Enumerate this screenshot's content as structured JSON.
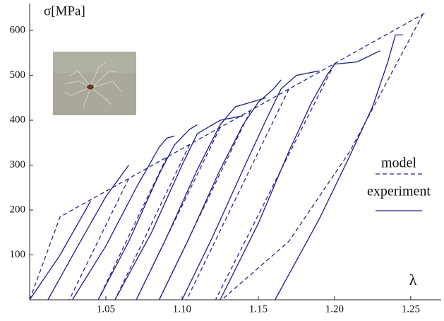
{
  "chart_data": {
    "type": "line",
    "y_label": "σ[MPa]",
    "x_label": "λ",
    "xlim": [
      1.0,
      1.27
    ],
    "ylim": [
      0,
      660
    ],
    "xticks": [
      1.05,
      {
        "value": 1.1,
        "label": "1.10"
      },
      1.15,
      {
        "value": 1.2,
        "label": "1.20"
      },
      1.25
    ],
    "yticks": [
      100,
      200,
      300,
      400,
      500,
      600
    ],
    "grid": false,
    "legend": "right",
    "series": [
      {
        "name": "model",
        "color": "#26268a",
        "dash": true,
        "x": [
          1.0,
          1.02,
          1.26,
          null,
          1.065,
          1.026,
          null,
          1.09,
          1.045,
          null,
          1.105,
          1.056,
          null,
          1.125,
          1.07,
          null,
          1.145,
          1.085,
          null,
          1.17,
          1.103,
          null,
          1.2,
          1.122,
          null,
          1.258,
          1.21,
          1.17,
          1.126
        ],
        "values": [
          0,
          185,
          640,
          null,
          270,
          0,
          null,
          318,
          0,
          null,
          346,
          0,
          null,
          384,
          0,
          null,
          422,
          0,
          null,
          469,
          0,
          null,
          526,
          0,
          null,
          636,
          330,
          130,
          0
        ]
      },
      {
        "name": "experiment",
        "color": "#1c1c8f",
        "dash": false,
        "x": [
          1.0,
          1.02,
          1.04,
          null,
          1.012,
          1.03,
          1.05,
          1.065,
          null,
          1.028,
          1.05,
          1.07,
          1.085,
          1.09,
          1.095,
          null,
          1.045,
          1.065,
          1.085,
          1.095,
          1.105,
          1.11,
          null,
          1.056,
          1.08,
          1.1,
          1.11,
          1.125,
          1.14,
          null,
          1.07,
          1.09,
          1.11,
          1.125,
          1.135,
          1.145,
          1.155,
          null,
          1.085,
          1.105,
          1.125,
          1.14,
          1.15,
          1.16,
          1.165,
          null,
          1.1,
          1.12,
          1.14,
          1.155,
          1.165,
          1.175,
          1.19,
          null,
          1.125,
          1.15,
          1.17,
          1.185,
          1.195,
          1.2,
          1.215,
          1.23,
          null,
          1.161,
          1.19,
          1.21,
          1.225,
          1.235,
          1.24,
          1.245
        ],
        "values": [
          0,
          100,
          220,
          null,
          0,
          110,
          230,
          300,
          null,
          0,
          120,
          250,
          340,
          360,
          365,
          null,
          0,
          130,
          280,
          345,
          380,
          390,
          null,
          0,
          150,
          300,
          370,
          400,
          410,
          null,
          0,
          140,
          290,
          390,
          430,
          440,
          450,
          null,
          0,
          140,
          290,
          390,
          440,
          470,
          490,
          null,
          0,
          140,
          290,
          400,
          470,
          500,
          510,
          null,
          0,
          170,
          330,
          440,
          500,
          525,
          530,
          555,
          null,
          0,
          180,
          320,
          430,
          530,
          590,
          590
        ]
      }
    ]
  }
}
